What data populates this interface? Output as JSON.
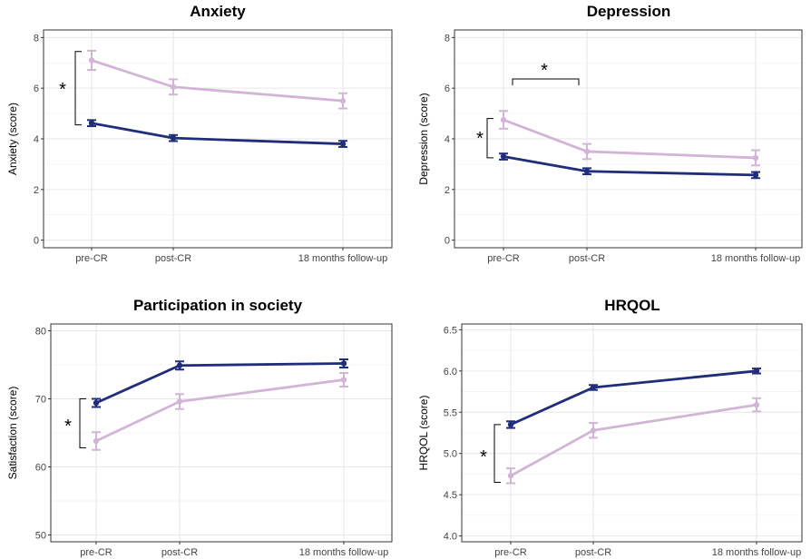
{
  "chart_data": [
    {
      "type": "line",
      "title": "Anxiety",
      "ylabel": "Anxiety  (score)",
      "categories": [
        "pre-CR",
        "post-CR",
        "18 months follow-up"
      ],
      "ylim": [
        -0.3,
        8.3
      ],
      "yticks": [
        "0",
        "2",
        "4",
        "6",
        "8"
      ],
      "ytick_values": [
        0,
        2,
        4,
        6,
        8
      ],
      "grid": true,
      "series": [
        {
          "color": "#d2b4d6",
          "values": [
            7.1,
            6.05,
            5.5
          ],
          "err": [
            0.38,
            0.3,
            0.3
          ]
        },
        {
          "color": "#1f2d7a",
          "values": [
            4.62,
            4.03,
            3.8
          ],
          "err": [
            0.12,
            0.12,
            0.12
          ]
        }
      ],
      "annotations": [
        {
          "text": "*",
          "type": "vertical",
          "from": 1,
          "to": 1
        }
      ]
    },
    {
      "type": "line",
      "title": "Depression",
      "ylabel": "Depression (score)",
      "categories": [
        "pre-CR",
        "post-CR",
        "18 months follow-up"
      ],
      "ylim": [
        -0.3,
        8.3
      ],
      "yticks": [
        "0",
        "2",
        "4",
        "6",
        "8"
      ],
      "ytick_values": [
        0,
        2,
        4,
        6,
        8
      ],
      "grid": true,
      "series": [
        {
          "color": "#d2b4d6",
          "values": [
            4.75,
            3.5,
            3.25
          ],
          "err": [
            0.35,
            0.3,
            0.3
          ]
        },
        {
          "color": "#1f2d7a",
          "values": [
            3.3,
            2.72,
            2.57
          ],
          "err": [
            0.12,
            0.12,
            0.12
          ]
        }
      ],
      "annotations": [
        {
          "text": "*",
          "type": "vertical"
        },
        {
          "text": "*",
          "type": "horizontal"
        }
      ]
    },
    {
      "type": "line",
      "title": "Participation in society",
      "ylabel": "Satisfaction (score)",
      "categories": [
        "pre-CR",
        "post-CR",
        "18 months follow-up"
      ],
      "ylim": [
        49,
        81
      ],
      "yticks": [
        "50",
        "60",
        "70",
        "80"
      ],
      "ytick_values": [
        50,
        60,
        70,
        80
      ],
      "grid": true,
      "series": [
        {
          "color": "#d2b4d6",
          "values": [
            63.8,
            69.6,
            72.8
          ],
          "err": [
            1.3,
            1.1,
            1.0
          ]
        },
        {
          "color": "#1f2d7a",
          "values": [
            69.4,
            74.9,
            75.2
          ],
          "err": [
            0.6,
            0.6,
            0.6
          ]
        }
      ],
      "annotations": [
        {
          "text": "*",
          "type": "vertical"
        }
      ]
    },
    {
      "type": "line",
      "title": "HRQOL",
      "ylabel": "HRQOL (score)",
      "categories": [
        "pre-CR",
        "post-CR",
        "18 months follow-up"
      ],
      "ylim": [
        3.93,
        6.57
      ],
      "yticks": [
        "4.0",
        "4.5",
        "5.0",
        "5.5",
        "6.0",
        "6.5"
      ],
      "ytick_values": [
        4.0,
        4.5,
        5.0,
        5.5,
        6.0,
        6.5
      ],
      "grid": true,
      "series": [
        {
          "color": "#d2b4d6",
          "values": [
            4.73,
            5.28,
            5.59
          ],
          "err": [
            0.09,
            0.09,
            0.08
          ]
        },
        {
          "color": "#1f2d7a",
          "values": [
            5.35,
            5.8,
            6.0
          ],
          "err": [
            0.04,
            0.03,
            0.03
          ]
        }
      ],
      "annotations": [
        {
          "text": "*",
          "type": "vertical"
        }
      ]
    }
  ]
}
